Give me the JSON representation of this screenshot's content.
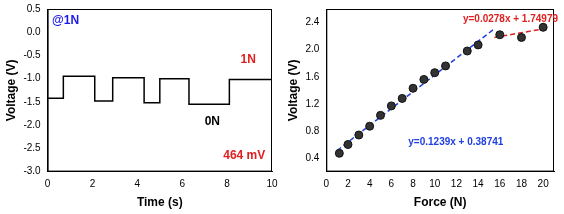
{
  "chart_data": [
    {
      "type": "line",
      "x_label": "Time (s)",
      "y_label": "Voltage (V)",
      "annotations": [
        "@1N",
        "1N",
        "0N",
        "464 mV"
      ],
      "x": [
        0,
        0.7,
        0.7,
        2.1,
        2.1,
        2.9,
        2.9,
        4.3,
        4.3,
        5.0,
        5.0,
        6.3,
        6.3,
        8.1,
        8.1,
        10
      ],
      "values": [
        -1.42,
        -1.42,
        -0.95,
        -0.95,
        -1.48,
        -1.48,
        -0.98,
        -0.98,
        -1.52,
        -1.52,
        -1.0,
        -1.0,
        -1.55,
        -1.55,
        -1.02,
        -1.02
      ],
      "color": "#000000",
      "xlim": [
        0,
        10
      ],
      "xticks": [
        0,
        2,
        4,
        6,
        8,
        10
      ],
      "ylim": [
        -3,
        0.5
      ],
      "yticks": [
        {
          "value": -3,
          "label": "-3.0"
        },
        -2.5,
        {
          "value": -2,
          "label": "-2.0"
        },
        -1.5,
        {
          "value": -1,
          "label": "-1.0"
        },
        -0.5,
        {
          "value": 0,
          "label": "0.0"
        },
        0.5
      ],
      "grid": false
    },
    {
      "type": "scatter",
      "x_label": "Force (N)",
      "y_label": "Voltage (V)",
      "annotations": [
        "y=0.0278x + 1.74979",
        "y=0.1239x + 0.38741"
      ],
      "series": [
        {
          "type": "scatter",
          "marker": "circle",
          "color": "#333333",
          "x": [
            1.2,
            2,
            3,
            4,
            5,
            6,
            7,
            8,
            9,
            10,
            11,
            13,
            14,
            16,
            18,
            20
          ],
          "values": [
            0.47,
            0.6,
            0.74,
            0.87,
            1.03,
            1.17,
            1.28,
            1.43,
            1.56,
            1.66,
            1.76,
            1.98,
            2.07,
            2.22,
            2.18,
            2.33
          ]
        },
        {
          "type": "line",
          "line_style": "dashed",
          "color": "#2040e0",
          "x": [
            1,
            15.5
          ],
          "values": [
            0.511,
            2.308
          ]
        },
        {
          "type": "line",
          "line_style": "dashed",
          "color": "#e02020",
          "x": [
            15.5,
            20.5
          ],
          "values": [
            2.181,
            2.32
          ]
        }
      ],
      "xlim": [
        0,
        21
      ],
      "xticks": [
        0,
        2,
        4,
        6,
        8,
        10,
        12,
        14,
        16,
        18,
        20
      ],
      "ylim": [
        0.2,
        2.6
      ],
      "yticks": [
        0.4,
        0.8,
        1.2,
        1.6,
        {
          "value": 2,
          "label": "2.0"
        },
        2.4
      ],
      "grid": false
    }
  ]
}
